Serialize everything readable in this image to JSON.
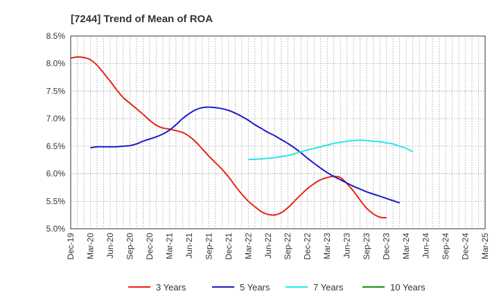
{
  "chart_data": {
    "type": "line",
    "title": "[7244]  Trend of Mean of ROA",
    "xlabel": "",
    "ylabel": "",
    "x_ticks": [
      "Dec-19",
      "Mar-20",
      "Jun-20",
      "Sep-20",
      "Dec-20",
      "Mar-21",
      "Jun-21",
      "Sep-21",
      "Dec-21",
      "Mar-22",
      "Jun-22",
      "Sep-22",
      "Dec-22",
      "Mar-23",
      "Jun-23",
      "Sep-23",
      "Dec-23",
      "Mar-24",
      "Jun-24",
      "Sep-24",
      "Dec-24",
      "Mar-25"
    ],
    "y_ticks": [
      "5.0%",
      "5.5%",
      "6.0%",
      "6.5%",
      "7.0%",
      "7.5%",
      "8.0%",
      "8.5%"
    ],
    "ylim": [
      5.0,
      8.5
    ],
    "grid": true,
    "legend_position": "bottom",
    "series": [
      {
        "name": "3 Years",
        "color": "#e8201a",
        "points": [
          [
            "Dec-19",
            8.1
          ],
          [
            "Jan-20",
            8.12
          ],
          [
            "Feb-20",
            8.11
          ],
          [
            "Mar-20",
            8.07
          ],
          [
            "Apr-20",
            7.97
          ],
          [
            "May-20",
            7.83
          ],
          [
            "Jun-20",
            7.68
          ],
          [
            "Jul-20",
            7.52
          ],
          [
            "Aug-20",
            7.38
          ],
          [
            "Sep-20",
            7.28
          ],
          [
            "Oct-20",
            7.18
          ],
          [
            "Nov-20",
            7.08
          ],
          [
            "Dec-20",
            6.97
          ],
          [
            "Jan-21",
            6.88
          ],
          [
            "Feb-21",
            6.83
          ],
          [
            "Mar-21",
            6.81
          ],
          [
            "Apr-21",
            6.78
          ],
          [
            "May-21",
            6.75
          ],
          [
            "Jun-21",
            6.68
          ],
          [
            "Jul-21",
            6.58
          ],
          [
            "Aug-21",
            6.45
          ],
          [
            "Sep-21",
            6.32
          ],
          [
            "Oct-21",
            6.2
          ],
          [
            "Nov-21",
            6.08
          ],
          [
            "Dec-21",
            5.94
          ],
          [
            "Jan-22",
            5.78
          ],
          [
            "Feb-22",
            5.63
          ],
          [
            "Mar-22",
            5.5
          ],
          [
            "Apr-22",
            5.4
          ],
          [
            "May-22",
            5.31
          ],
          [
            "Jun-22",
            5.26
          ],
          [
            "Jul-22",
            5.25
          ],
          [
            "Aug-22",
            5.29
          ],
          [
            "Sep-22",
            5.38
          ],
          [
            "Oct-22",
            5.5
          ],
          [
            "Nov-22",
            5.62
          ],
          [
            "Dec-22",
            5.73
          ],
          [
            "Jan-23",
            5.82
          ],
          [
            "Feb-23",
            5.89
          ],
          [
            "Mar-23",
            5.93
          ],
          [
            "Apr-23",
            5.95
          ],
          [
            "May-23",
            5.93
          ],
          [
            "Jun-23",
            5.82
          ],
          [
            "Jul-23",
            5.68
          ],
          [
            "Aug-23",
            5.52
          ],
          [
            "Sep-23",
            5.37
          ],
          [
            "Oct-23",
            5.27
          ],
          [
            "Nov-23",
            5.21
          ],
          [
            "Dec-23",
            5.2
          ]
        ]
      },
      {
        "name": "5 Years",
        "color": "#1a1ac8",
        "points": [
          [
            "Mar-20",
            6.47
          ],
          [
            "Apr-20",
            6.49
          ],
          [
            "May-20",
            6.49
          ],
          [
            "Jun-20",
            6.49
          ],
          [
            "Jul-20",
            6.49
          ],
          [
            "Aug-20",
            6.5
          ],
          [
            "Sep-20",
            6.51
          ],
          [
            "Oct-20",
            6.54
          ],
          [
            "Nov-20",
            6.59
          ],
          [
            "Dec-20",
            6.63
          ],
          [
            "Jan-21",
            6.67
          ],
          [
            "Feb-21",
            6.72
          ],
          [
            "Mar-21",
            6.79
          ],
          [
            "Apr-21",
            6.89
          ],
          [
            "May-21",
            7.0
          ],
          [
            "Jun-21",
            7.09
          ],
          [
            "Jul-21",
            7.16
          ],
          [
            "Aug-21",
            7.2
          ],
          [
            "Sep-21",
            7.21
          ],
          [
            "Oct-21",
            7.2
          ],
          [
            "Nov-21",
            7.18
          ],
          [
            "Dec-21",
            7.15
          ],
          [
            "Jan-22",
            7.1
          ],
          [
            "Feb-22",
            7.04
          ],
          [
            "Mar-22",
            6.97
          ],
          [
            "Apr-22",
            6.89
          ],
          [
            "May-22",
            6.82
          ],
          [
            "Jun-22",
            6.75
          ],
          [
            "Jul-22",
            6.69
          ],
          [
            "Aug-22",
            6.62
          ],
          [
            "Sep-22",
            6.55
          ],
          [
            "Oct-22",
            6.47
          ],
          [
            "Nov-22",
            6.38
          ],
          [
            "Dec-22",
            6.28
          ],
          [
            "Jan-23",
            6.19
          ],
          [
            "Feb-23",
            6.1
          ],
          [
            "Mar-23",
            6.02
          ],
          [
            "Apr-23",
            5.95
          ],
          [
            "May-23",
            5.89
          ],
          [
            "Jun-23",
            5.83
          ],
          [
            "Jul-23",
            5.77
          ],
          [
            "Aug-23",
            5.72
          ],
          [
            "Sep-23",
            5.67
          ],
          [
            "Oct-23",
            5.63
          ],
          [
            "Nov-23",
            5.59
          ],
          [
            "Dec-23",
            5.55
          ],
          [
            "Jan-24",
            5.51
          ],
          [
            "Feb-24",
            5.47
          ]
        ]
      },
      {
        "name": "7 Years",
        "color": "#22e6ea",
        "points": [
          [
            "Mar-22",
            6.26
          ],
          [
            "Apr-22",
            6.26
          ],
          [
            "May-22",
            6.27
          ],
          [
            "Jun-22",
            6.28
          ],
          [
            "Jul-22",
            6.29
          ],
          [
            "Aug-22",
            6.31
          ],
          [
            "Sep-22",
            6.33
          ],
          [
            "Oct-22",
            6.36
          ],
          [
            "Nov-22",
            6.4
          ],
          [
            "Dec-22",
            6.43
          ],
          [
            "Jan-23",
            6.46
          ],
          [
            "Feb-23",
            6.49
          ],
          [
            "Mar-23",
            6.52
          ],
          [
            "Apr-23",
            6.55
          ],
          [
            "May-23",
            6.57
          ],
          [
            "Jun-23",
            6.59
          ],
          [
            "Jul-23",
            6.6
          ],
          [
            "Aug-23",
            6.61
          ],
          [
            "Sep-23",
            6.6
          ],
          [
            "Oct-23",
            6.59
          ],
          [
            "Nov-23",
            6.58
          ],
          [
            "Dec-23",
            6.56
          ],
          [
            "Jan-24",
            6.54
          ],
          [
            "Feb-24",
            6.5
          ],
          [
            "Mar-24",
            6.46
          ],
          [
            "Apr-24",
            6.4
          ]
        ]
      },
      {
        "name": "10 Years",
        "color": "#1a8c1a",
        "points": []
      }
    ]
  }
}
